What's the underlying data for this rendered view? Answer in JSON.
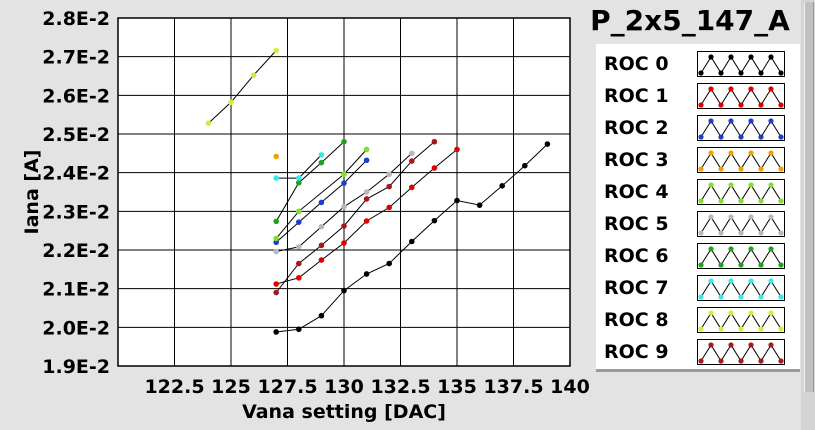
{
  "chart_data": {
    "type": "line",
    "title": "P_2x5_147_A",
    "xlabel": "Vana setting [DAC]",
    "ylabel": "Iana [A]",
    "xlim": [
      120,
      140
    ],
    "ylim": [
      0.019,
      0.028
    ],
    "x_ticks": [
      {
        "value": 122.5,
        "label": "122.5"
      },
      {
        "value": 125,
        "label": "125"
      },
      {
        "value": 127.5,
        "label": "127.5"
      },
      {
        "value": 130,
        "label": "130"
      },
      {
        "value": 132.5,
        "label": "132.5"
      },
      {
        "value": 135,
        "label": "135"
      },
      {
        "value": 137.5,
        "label": "137.5"
      },
      {
        "value": 140,
        "label": "140"
      }
    ],
    "y_ticks": [
      {
        "value": 0.019,
        "label": "1.9E-2"
      },
      {
        "value": 0.02,
        "label": "2.0E-2"
      },
      {
        "value": 0.021,
        "label": "2.1E-2"
      },
      {
        "value": 0.022,
        "label": "2.2E-2"
      },
      {
        "value": 0.023,
        "label": "2.3E-2"
      },
      {
        "value": 0.024,
        "label": "2.4E-2"
      },
      {
        "value": 0.025,
        "label": "2.5E-2"
      },
      {
        "value": 0.026,
        "label": "2.6E-2"
      },
      {
        "value": 0.027,
        "label": "2.7E-2"
      },
      {
        "value": 0.028,
        "label": "2.8E-2"
      }
    ],
    "grid": true,
    "legend_position": "right",
    "series": [
      {
        "name": "ROC 0",
        "color": "#000000",
        "points": [
          [
            127,
            0.01988
          ],
          [
            128,
            0.01995
          ],
          [
            129,
            0.0203
          ],
          [
            130,
            0.02095
          ],
          [
            131,
            0.02138
          ],
          [
            132,
            0.02165
          ],
          [
            133,
            0.02222
          ],
          [
            134,
            0.02276
          ],
          [
            135,
            0.02328
          ],
          [
            136,
            0.02316
          ],
          [
            137,
            0.02366
          ],
          [
            138,
            0.02418
          ],
          [
            139,
            0.02474
          ]
        ]
      },
      {
        "name": "ROC 1",
        "color": "#e00000",
        "points": [
          [
            127,
            0.02112
          ],
          [
            128,
            0.02128
          ],
          [
            129,
            0.02174
          ],
          [
            130,
            0.02218
          ],
          [
            131,
            0.02275
          ],
          [
            132,
            0.0231
          ],
          [
            133,
            0.02362
          ],
          [
            134,
            0.02412
          ],
          [
            135,
            0.0246
          ]
        ]
      },
      {
        "name": "ROC 2",
        "color": "#1a3fd0",
        "points": [
          [
            127,
            0.0222
          ],
          [
            128,
            0.02272
          ],
          [
            129,
            0.02323
          ],
          [
            130,
            0.02373
          ],
          [
            131,
            0.02432
          ]
        ]
      },
      {
        "name": "ROC 3",
        "color": "#f0a000",
        "points": [
          [
            127,
            0.02442
          ]
        ]
      },
      {
        "name": "ROC 4",
        "color": "#7ee02a",
        "points": [
          [
            127,
            0.0223
          ],
          [
            128,
            0.023
          ],
          [
            130,
            0.02396
          ],
          [
            131,
            0.0246
          ]
        ]
      },
      {
        "name": "ROC 5",
        "color": "#b8b8b8",
        "points": [
          [
            127,
            0.02196
          ],
          [
            128,
            0.02208
          ],
          [
            129,
            0.0226
          ],
          [
            130,
            0.02312
          ],
          [
            131,
            0.0235
          ],
          [
            132,
            0.02396
          ],
          [
            133,
            0.0245
          ]
        ]
      },
      {
        "name": "ROC 6",
        "color": "#1fa01f",
        "points": [
          [
            127,
            0.02274
          ],
          [
            128,
            0.02374
          ],
          [
            129,
            0.02426
          ],
          [
            130,
            0.0248
          ]
        ]
      },
      {
        "name": "ROC 7",
        "color": "#33e8ef",
        "points": [
          [
            127,
            0.02386
          ],
          [
            128,
            0.02386
          ],
          [
            129,
            0.02446
          ]
        ]
      },
      {
        "name": "ROC 8",
        "color": "#ccf040",
        "points": [
          [
            124,
            0.02528
          ],
          [
            125,
            0.02582
          ],
          [
            126,
            0.02652
          ],
          [
            127,
            0.02716
          ]
        ]
      },
      {
        "name": "ROC 9",
        "color": "#a81818",
        "points": [
          [
            127,
            0.0209
          ],
          [
            128,
            0.02165
          ],
          [
            129,
            0.02212
          ],
          [
            130,
            0.02262
          ],
          [
            131,
            0.02332
          ],
          [
            132,
            0.02364
          ],
          [
            133,
            0.0243
          ],
          [
            134,
            0.0248
          ]
        ]
      }
    ]
  }
}
